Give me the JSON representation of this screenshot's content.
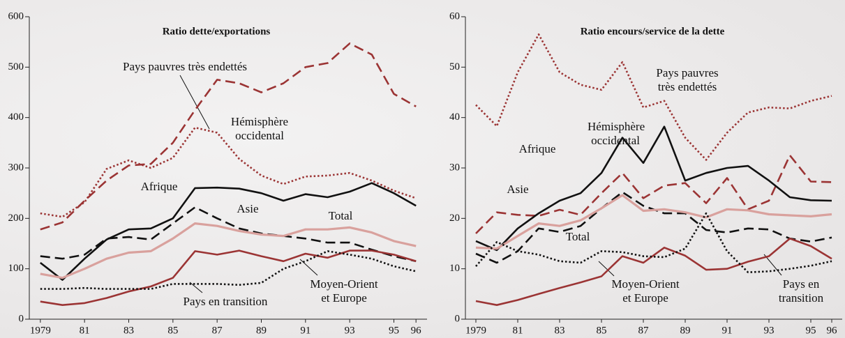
{
  "chart_data": [
    {
      "type": "line",
      "title": "Ratio dette/exportations",
      "x": [
        1979,
        1980,
        1981,
        1982,
        1983,
        1984,
        1985,
        1986,
        1987,
        1988,
        1989,
        1990,
        1991,
        1992,
        1993,
        1994,
        1995,
        1996
      ],
      "xlim": [
        1978.5,
        1996.5
      ],
      "xticks": [
        {
          "value": 1979,
          "label": "1979"
        },
        {
          "value": 1981,
          "label": "81"
        },
        {
          "value": 1983,
          "label": "83"
        },
        {
          "value": 1985,
          "label": "85"
        },
        {
          "value": 1987,
          "label": "87"
        },
        {
          "value": 1989,
          "label": "89"
        },
        {
          "value": 1991,
          "label": "91"
        },
        {
          "value": 1993,
          "label": "93"
        },
        {
          "value": 1995,
          "label": "95"
        },
        {
          "value": 1996,
          "label": "96"
        }
      ],
      "ylim": [
        0,
        600
      ],
      "yticks": [
        0,
        100,
        200,
        300,
        400,
        500,
        600
      ],
      "series": [
        {
          "name": "Pays pauvres très endettés",
          "color": "#9b3434",
          "style": "dashed",
          "values": [
            178,
            192,
            235,
            275,
            305,
            308,
            350,
            415,
            475,
            468,
            450,
            468,
            500,
            508,
            547,
            525,
            447,
            422
          ]
        },
        {
          "name": "Hémisphère occidental",
          "color": "#9b3434",
          "style": "dotted",
          "values": [
            210,
            203,
            232,
            298,
            315,
            300,
            320,
            380,
            370,
            318,
            285,
            268,
            283,
            285,
            290,
            275,
            255,
            240
          ]
        },
        {
          "name": "Afrique",
          "color": "#111111",
          "style": "solid",
          "values": [
            112,
            78,
            120,
            158,
            178,
            180,
            200,
            260,
            261,
            259,
            250,
            235,
            248,
            242,
            253,
            270,
            250,
            225
          ]
        },
        {
          "name": "Asie",
          "color": "#111111",
          "style": "dashed",
          "values": [
            125,
            120,
            128,
            160,
            163,
            158,
            190,
            222,
            200,
            180,
            170,
            165,
            160,
            152,
            152,
            138,
            125,
            115
          ]
        },
        {
          "name": "Total",
          "color": "#d9a19d",
          "style": "solid",
          "values": [
            90,
            82,
            100,
            120,
            132,
            135,
            160,
            190,
            185,
            175,
            168,
            165,
            178,
            178,
            182,
            172,
            155,
            145
          ]
        },
        {
          "name": "Moyen-Orient et Europe",
          "color": "#9b3434",
          "style": "solid",
          "values": [
            35,
            28,
            32,
            42,
            55,
            65,
            82,
            135,
            128,
            136,
            125,
            115,
            130,
            122,
            136,
            136,
            128,
            115
          ]
        },
        {
          "name": "Pays en transition",
          "color": "#111111",
          "style": "dotted",
          "values": [
            60,
            60,
            62,
            60,
            60,
            60,
            70,
            70,
            70,
            68,
            72,
            100,
            115,
            135,
            128,
            120,
            105,
            95
          ]
        }
      ]
    },
    {
      "type": "line",
      "title": "Ratio encours/service de la dette",
      "x": [
        1979,
        1980,
        1981,
        1982,
        1983,
        1984,
        1985,
        1986,
        1987,
        1988,
        1989,
        1990,
        1991,
        1992,
        1993,
        1994,
        1995,
        1996
      ],
      "xlim": [
        1978.5,
        1996.5
      ],
      "xticks": [
        {
          "value": 1979,
          "label": "1979"
        },
        {
          "value": 1981,
          "label": "81"
        },
        {
          "value": 1983,
          "label": "83"
        },
        {
          "value": 1985,
          "label": "85"
        },
        {
          "value": 1987,
          "label": "87"
        },
        {
          "value": 1989,
          "label": "89"
        },
        {
          "value": 1991,
          "label": "91"
        },
        {
          "value": 1993,
          "label": "93"
        },
        {
          "value": 1995,
          "label": "95"
        },
        {
          "value": 1996,
          "label": "96"
        }
      ],
      "ylim": [
        0,
        60
      ],
      "yticks": [
        0,
        10,
        20,
        30,
        40,
        50,
        60
      ],
      "series": [
        {
          "name": "Pays pauvres très endettés",
          "color": "#9b3434",
          "style": "dashed",
          "values": [
            17,
            21.2,
            20.7,
            20.5,
            21.7,
            20.7,
            25,
            29,
            24,
            26.5,
            27,
            23,
            28,
            21.8,
            23.5,
            32.5,
            27.3,
            27.2
          ]
        },
        {
          "name": "Hémisphère occidental",
          "color": "#9b3434",
          "style": "dotted",
          "values": [
            42.5,
            38.3,
            49,
            56.5,
            49,
            46.5,
            45.5,
            51,
            42,
            43.3,
            36,
            31.6,
            37,
            41,
            42,
            41.8,
            43.3,
            44.3
          ]
        },
        {
          "name": "Afrique",
          "color": "#111111",
          "style": "solid",
          "values": [
            15.5,
            13.7,
            18,
            21,
            23.5,
            25,
            29,
            36,
            31,
            38.2,
            27.5,
            29,
            30,
            30.4,
            27.5,
            24.2,
            23.6,
            23.5
          ]
        },
        {
          "name": "Asie",
          "color": "#111111",
          "style": "dashed",
          "values": [
            13,
            11.2,
            13.5,
            18,
            17.3,
            18.5,
            22,
            25.2,
            22.5,
            21,
            21,
            17.7,
            17.2,
            18,
            17.8,
            16,
            15.4,
            16.2
          ]
        },
        {
          "name": "Total",
          "color": "#d9a19d",
          "style": "solid",
          "values": [
            14.2,
            14,
            16.5,
            19,
            18.5,
            19.6,
            22,
            24.6,
            21.5,
            21.8,
            21.2,
            20.2,
            21.8,
            21.6,
            20.8,
            20.6,
            20.4,
            20.8
          ]
        },
        {
          "name": "Moyen-Orient et Europe",
          "color": "#9b3434",
          "style": "solid",
          "values": [
            3.6,
            2.8,
            3.8,
            5,
            6.2,
            7.3,
            8.5,
            12.5,
            11.2,
            14.2,
            12.6,
            9.8,
            10,
            11.4,
            12.5,
            16,
            14.5,
            12
          ]
        },
        {
          "name": "Pays en transition",
          "color": "#111111",
          "style": "dotted",
          "values": [
            10.5,
            15.3,
            13.5,
            12.8,
            11.5,
            11.2,
            13.5,
            13.3,
            12.5,
            12.3,
            14,
            21,
            13.5,
            9.3,
            9.5,
            10,
            10.6,
            11.5
          ]
        }
      ]
    }
  ]
}
